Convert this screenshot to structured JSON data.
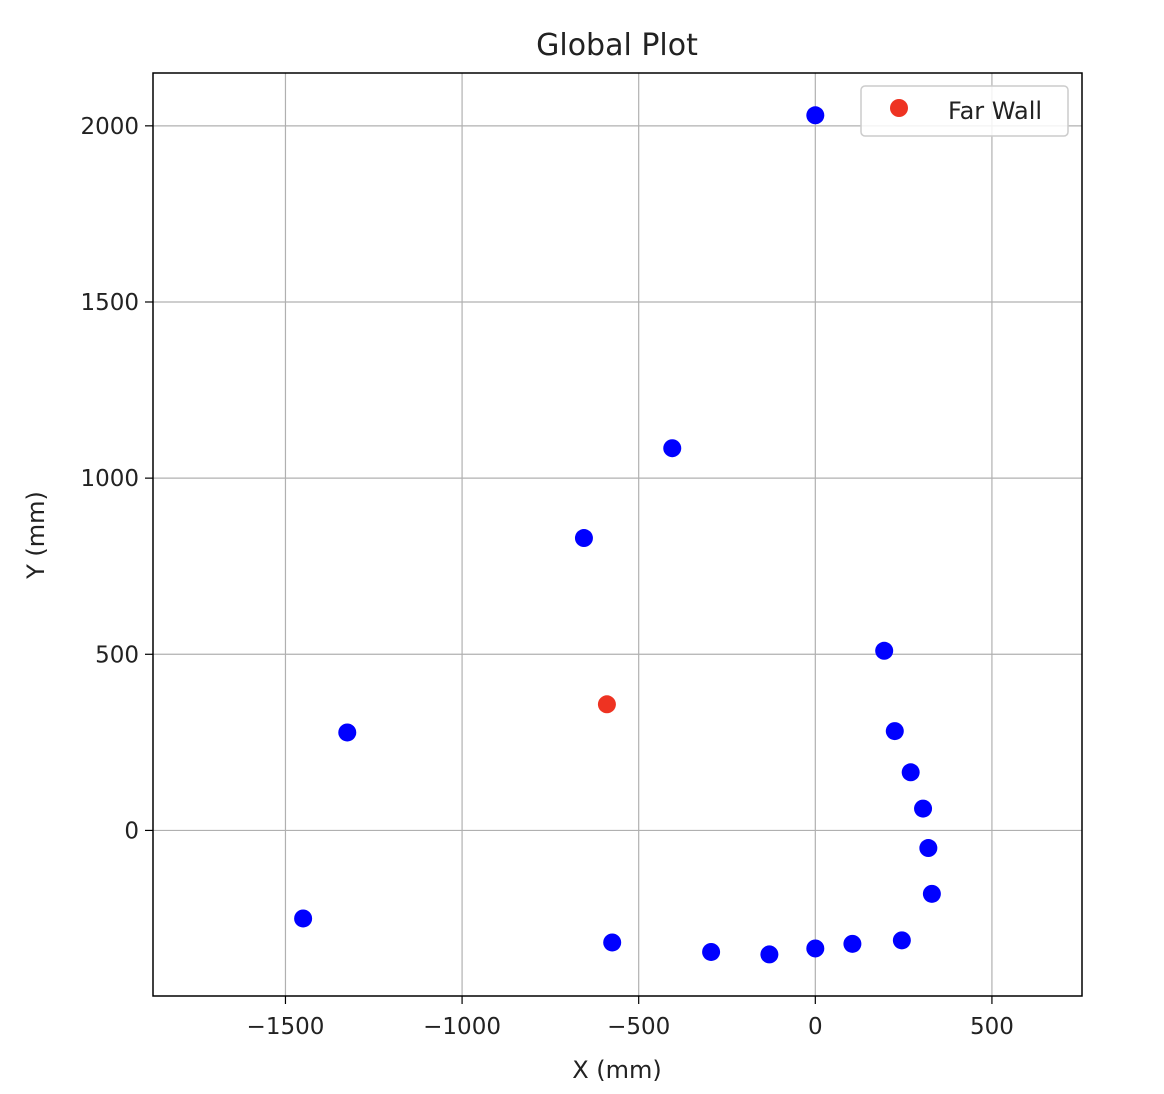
{
  "chart_data": {
    "type": "scatter",
    "title": "Global Plot",
    "xlabel": "X (mm)",
    "ylabel": "Y (mm)",
    "xlim": [
      -1875,
      755
    ],
    "ylim": [
      -470,
      2150
    ],
    "xticks": [
      -1500,
      -1000,
      -500,
      0,
      500
    ],
    "yticks": [
      0,
      500,
      1000,
      1500,
      2000
    ],
    "xtick_labels": [
      "−1500",
      "−1000",
      "−500",
      "0",
      "500"
    ],
    "ytick_labels": [
      "0",
      "500",
      "1000",
      "1500",
      "2000"
    ],
    "grid": true,
    "legend": {
      "placement": "top-right",
      "entries": [
        "Far Wall"
      ]
    },
    "series": [
      {
        "color": "#0000ff",
        "points": [
          {
            "x": 0,
            "y": 2030
          },
          {
            "x": -405,
            "y": 1085
          },
          {
            "x": -655,
            "y": 830
          },
          {
            "x": 195,
            "y": 510
          },
          {
            "x": -1325,
            "y": 278
          },
          {
            "x": 225,
            "y": 282
          },
          {
            "x": 270,
            "y": 165
          },
          {
            "x": 305,
            "y": 62
          },
          {
            "x": 320,
            "y": -50
          },
          {
            "x": 330,
            "y": -180
          },
          {
            "x": -1450,
            "y": -250
          },
          {
            "x": -575,
            "y": -318
          },
          {
            "x": 245,
            "y": -312
          },
          {
            "x": 105,
            "y": -322
          },
          {
            "x": 0,
            "y": -335
          },
          {
            "x": -130,
            "y": -352
          },
          {
            "x": -295,
            "y": -345
          }
        ]
      },
      {
        "name": "Far Wall",
        "color": "#ee3322",
        "points": [
          {
            "x": -590,
            "y": 358
          }
        ]
      }
    ]
  }
}
